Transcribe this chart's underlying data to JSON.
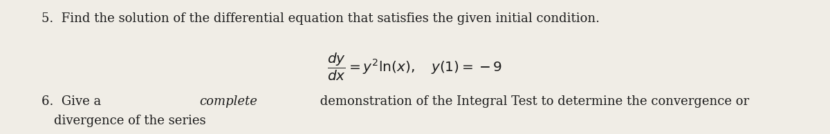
{
  "background_color": "#f0ede6",
  "text_color": "#1c1c1c",
  "line1": "5.  Find the solution of the differential equation that satisfies the given initial condition.",
  "eq_latex": "$\\dfrac{dy}{dx} = y^2 \\ln(x), \\quad y(1) = -9$",
  "line3_pre": "6.  Give a ",
  "line3_italic": "complete",
  "line3_post": " demonstration of the Integral Test to determine the convergence or",
  "line4": "divergence of the series",
  "font_size_main": 13.0,
  "font_size_eq": 14.5,
  "fig_width": 12.0,
  "fig_height": 1.94,
  "dpi": 100
}
